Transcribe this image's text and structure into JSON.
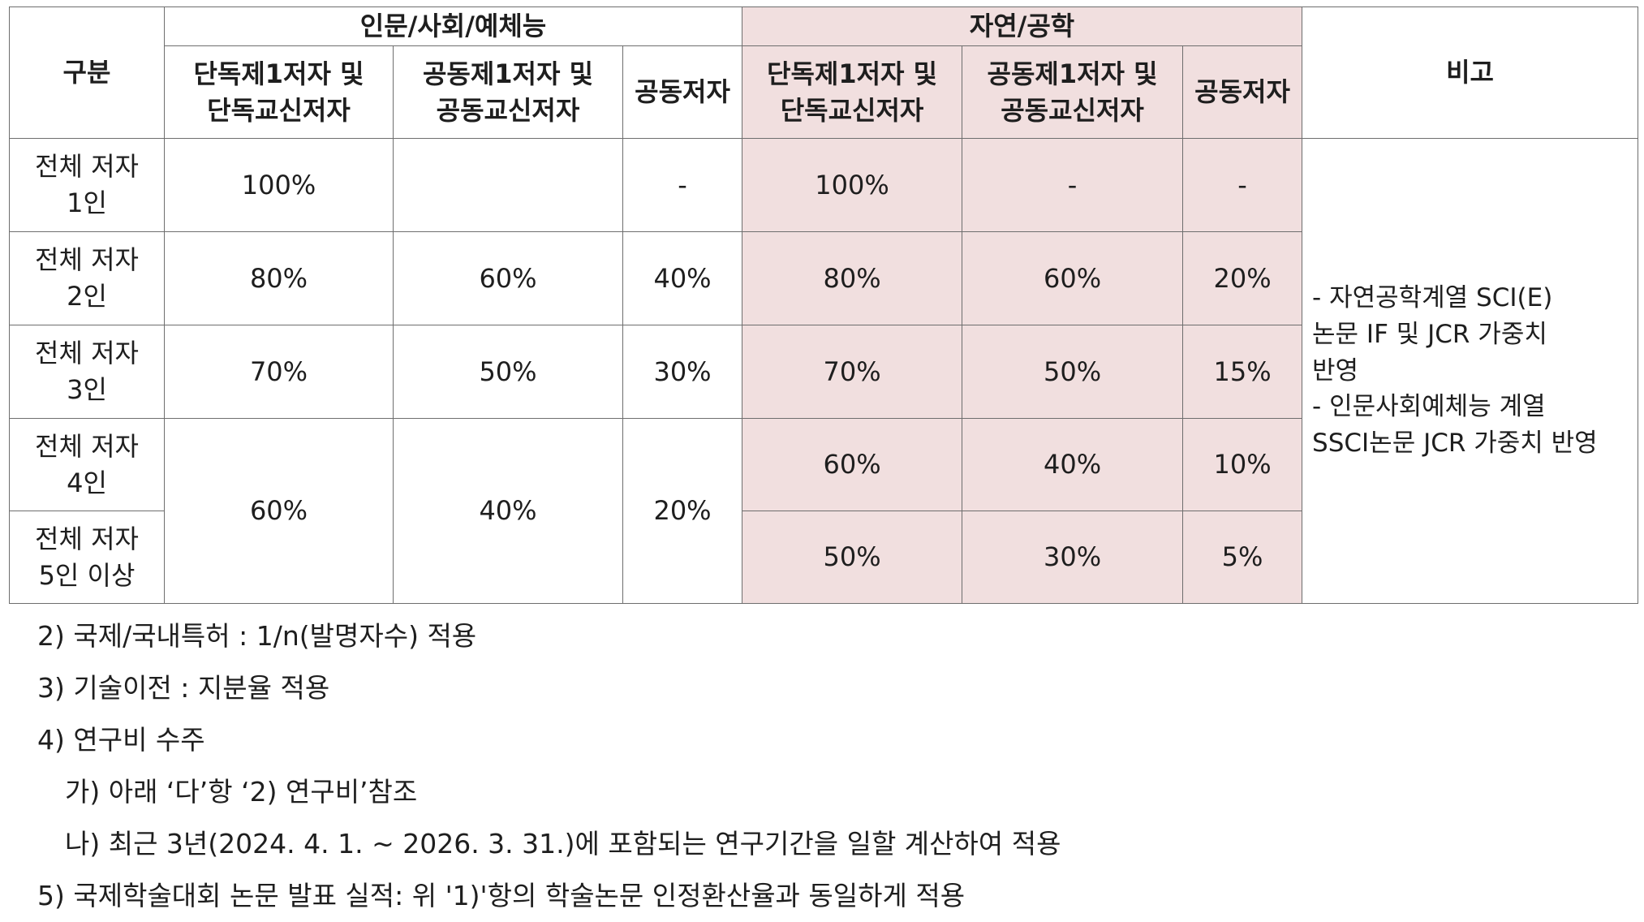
{
  "table": {
    "header_category": "구분",
    "group_humanities": "인문/사회/예체능",
    "group_science": "자연/공학",
    "header_remarks": "비고",
    "sub_sole_line1": "단독제1저자 및",
    "sub_sole_line2": "단독교신저자",
    "sub_joint_line1": "공동제1저자 및",
    "sub_joint_line2": "공동교신저자",
    "sub_coauthor": "공동저자",
    "rows": [
      {
        "label_line1": "전체 저자",
        "label_line2": "1인",
        "h_sole": "100%",
        "h_joint": "",
        "h_co": "-",
        "s_sole": "100%",
        "s_joint": "-",
        "s_co": "-"
      },
      {
        "label_line1": "전체 저자",
        "label_line2": "2인",
        "h_sole": "80%",
        "h_joint": "60%",
        "h_co": "40%",
        "s_sole": "80%",
        "s_joint": "60%",
        "s_co": "20%"
      },
      {
        "label_line1": "전체 저자",
        "label_line2": "3인",
        "h_sole": "70%",
        "h_joint": "50%",
        "h_co": "30%",
        "s_sole": "70%",
        "s_joint": "50%",
        "s_co": "15%"
      },
      {
        "label_line1": "전체 저자",
        "label_line2": "4인",
        "h_sole": "60%",
        "h_joint": "40%",
        "h_co": "20%",
        "s_sole": "60%",
        "s_joint": "40%",
        "s_co": "10%"
      },
      {
        "label_line1": "전체 저자",
        "label_line2": "5인 이상",
        "s_sole": "50%",
        "s_joint": "30%",
        "s_co": "5%"
      }
    ],
    "remarks_lines": [
      "- 자연공학계열 SCI(E)",
      "논문 IF 및 JCR  가중치",
      "반영",
      "- 인문사회예체능 계열",
      "SSCI논문 JCR 가중치 반영"
    ]
  },
  "notes": [
    "2) 국제/국내특허 : 1/n(발명자수) 적용",
    "3) 기술이전 : 지분율 적용",
    "4) 연구비 수주",
    "가) 아래 ‘다’항 ‘2) 연구비’참조",
    "나) 최근 3년(2024. 4. 1. ~ 2026. 3. 31.)에 포함되는 연구기간을 일할 계산하여 적용",
    "5) 국제학술대회 논문 발표 실적: 위 '1)'항의 학술논문 인정환산율과 동일하게 적용"
  ]
}
